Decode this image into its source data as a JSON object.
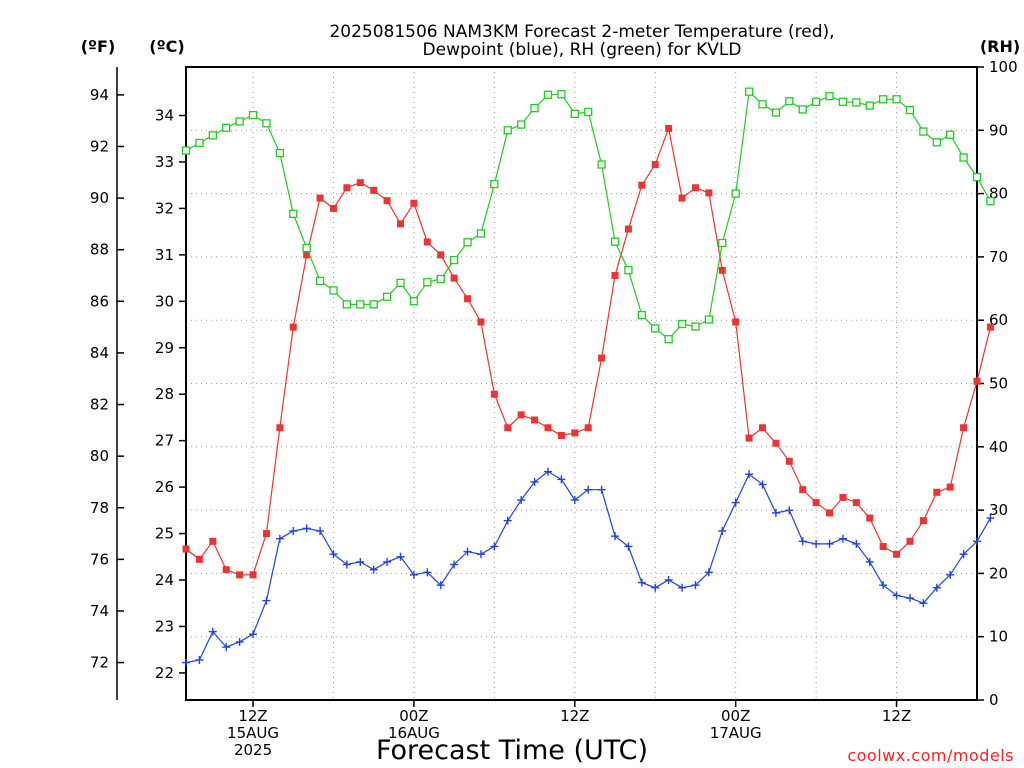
{
  "chart_data": {
    "type": "line",
    "title_line1": "2025081506 NAM3KM Forecast 2-meter Temperature (red),",
    "title_line2": "Dewpoint (blue), RH (green) for KVLD",
    "x_axis_title": "Forecast Time (UTC)",
    "credit": "coolwx.com/models",
    "unit_f": "(ºF)",
    "unit_c": "(ºC)",
    "unit_rh": "(RH)",
    "x_hours": {
      "start": 7,
      "end": 66,
      "step": 1
    },
    "x_ticks": [
      {
        "hour": 12,
        "lines": [
          "12Z",
          "15AUG",
          "2025"
        ]
      },
      {
        "hour": 24,
        "lines": [
          "00Z",
          "16AUG"
        ]
      },
      {
        "hour": 36,
        "lines": [
          "12Z"
        ]
      },
      {
        "hour": 48,
        "lines": [
          "00Z",
          "17AUG"
        ]
      },
      {
        "hour": 60,
        "lines": [
          "12Z"
        ]
      }
    ],
    "f_axis": {
      "min": 70.55,
      "max": 95.08,
      "ticks": [
        72,
        74,
        76,
        78,
        80,
        82,
        84,
        86,
        88,
        90,
        92,
        94
      ]
    },
    "c_axis": {
      "ticks": [
        22,
        23,
        24,
        25,
        26,
        27,
        28,
        29,
        30,
        31,
        32,
        33,
        34
      ]
    },
    "rh_axis": {
      "min": 0,
      "max": 100,
      "ticks": [
        0,
        10,
        20,
        30,
        40,
        50,
        60,
        70,
        80,
        90,
        100
      ]
    },
    "series": [
      {
        "name": "2-meter Temperature",
        "axis": "f",
        "color": "#ee3333",
        "marker": "square-filled",
        "values": [
          76.4,
          76.0,
          76.7,
          75.6,
          75.4,
          75.4,
          77.0,
          81.1,
          85.0,
          87.8,
          90.0,
          89.6,
          90.4,
          90.6,
          90.3,
          89.9,
          89.0,
          89.8,
          88.3,
          87.8,
          86.9,
          86.1,
          85.2,
          82.4,
          81.1,
          81.6,
          81.4,
          81.1,
          80.8,
          80.9,
          81.1,
          83.8,
          87.0,
          88.8,
          90.5,
          91.3,
          92.7,
          90.0,
          90.4,
          90.2,
          87.2,
          85.2,
          80.7,
          81.1,
          80.5,
          79.8,
          78.7,
          78.2,
          77.8,
          78.4,
          78.2,
          77.6,
          76.5,
          76.2,
          76.7,
          77.5,
          78.6,
          78.8,
          81.1,
          82.9,
          85.0
        ]
      },
      {
        "name": "Dewpoint",
        "axis": "f",
        "color": "#2244dd",
        "marker": "plus",
        "values": [
          72.0,
          72.1,
          73.2,
          72.6,
          72.8,
          73.1,
          74.4,
          76.8,
          77.1,
          77.2,
          77.1,
          76.2,
          75.8,
          75.9,
          75.6,
          75.9,
          76.1,
          75.4,
          75.5,
          75.0,
          75.8,
          76.3,
          76.2,
          76.5,
          77.5,
          78.3,
          79.0,
          79.4,
          79.1,
          78.3,
          78.7,
          78.7,
          76.9,
          76.5,
          75.1,
          74.9,
          75.2,
          74.9,
          75.0,
          75.5,
          77.1,
          78.2,
          79.3,
          78.9,
          77.8,
          77.9,
          76.7,
          76.6,
          76.6,
          76.8,
          76.6,
          75.9,
          75.0,
          74.6,
          74.5,
          74.3,
          74.9,
          75.4,
          76.2,
          76.7,
          77.6
        ]
      },
      {
        "name": "RH",
        "axis": "rh",
        "color": "#22cc22",
        "marker": "square-open",
        "values": [
          86.8,
          88.0,
          89.2,
          90.4,
          91.4,
          92.4,
          91.1,
          86.4,
          76.8,
          71.4,
          66.2,
          64.7,
          62.5,
          62.5,
          62.5,
          63.7,
          65.9,
          63.0,
          66.0,
          66.5,
          69.5,
          72.3,
          73.7,
          81.5,
          90.0,
          90.9,
          93.5,
          95.6,
          95.7,
          92.6,
          92.9,
          84.6,
          72.4,
          67.9,
          60.8,
          58.7,
          57.0,
          59.4,
          59.0,
          60.1,
          72.2,
          80.0,
          96.1,
          94.1,
          92.8,
          94.6,
          93.3,
          94.5,
          95.4,
          94.5,
          94.4,
          93.9,
          94.9,
          94.9,
          93.2,
          89.8,
          88.1,
          89.3,
          85.7,
          82.6,
          78.8
        ]
      }
    ]
  }
}
